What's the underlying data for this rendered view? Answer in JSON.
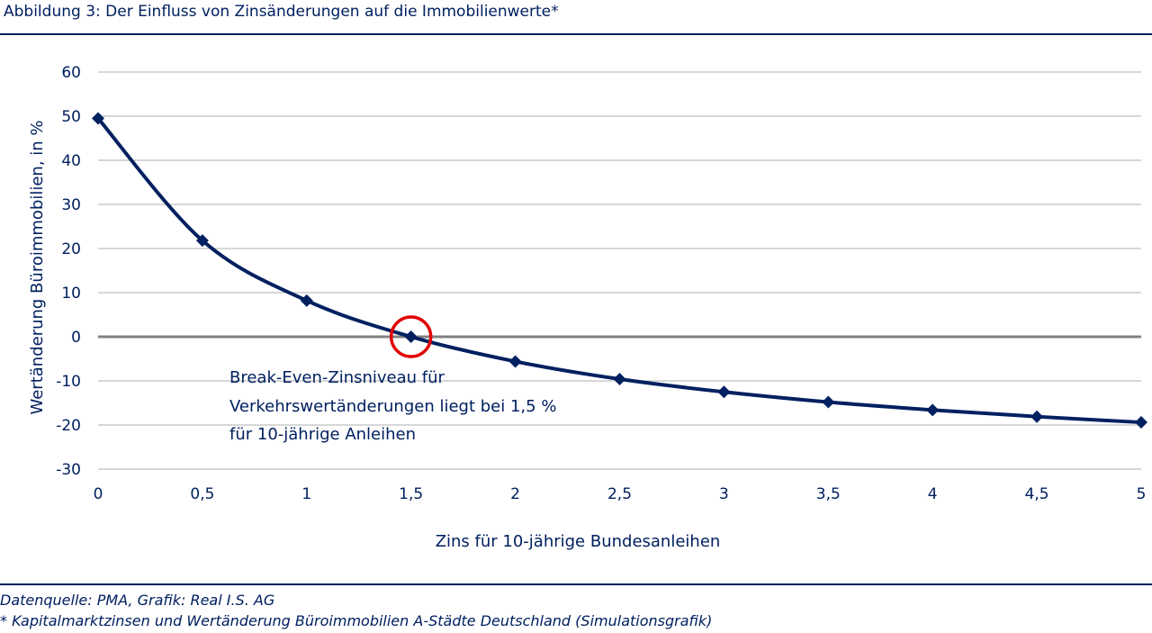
{
  "header": {
    "title": "Abbildung 3: Der Einfluss von Zinsänderungen auf die Immobilienwerte*"
  },
  "footer": {
    "source": "Datenquelle: PMA, Grafik: Real I.S. AG",
    "note": "* Kapitalmarktzinsen und Wertänderung Büroimmobilien A-Städte Deutschland (Simulationsgrafik)"
  },
  "colors": {
    "primary": "#002060",
    "grid": "#BFBFBF",
    "zero_line": "#808080",
    "highlight": "#E00000"
  },
  "chart_data": {
    "type": "line",
    "xlabel": "Zins für 10-jährige Bundesanleihen",
    "ylabel": "Wertänderung Büroimmobilien, in %",
    "xlim": [
      0,
      5
    ],
    "ylim": [
      -30,
      60
    ],
    "x_ticks": [
      0,
      0.5,
      1,
      1.5,
      2,
      2.5,
      3,
      3.5,
      4,
      4.5,
      5
    ],
    "x_tick_labels": [
      "0",
      "0,5",
      "1",
      "1,5",
      "2",
      "2,5",
      "3",
      "3,5",
      "4",
      "4,5",
      "5"
    ],
    "y_ticks": [
      60,
      50,
      40,
      30,
      20,
      10,
      0,
      -10,
      -20,
      -30
    ],
    "y_tick_labels": [
      "60",
      "50",
      "40",
      "30",
      "20",
      "10",
      "0",
      "-10",
      "-20",
      "-30"
    ],
    "grid": "horizontal",
    "smooth": true,
    "marker": "diamond",
    "series": [
      {
        "x": [
          0,
          0.5,
          1,
          1.5,
          2,
          2.5,
          3,
          3.5,
          4,
          4.5,
          5
        ],
        "values": [
          49.5,
          21.8,
          8.2,
          0,
          -5.6,
          -9.6,
          -12.5,
          -14.8,
          -16.6,
          -18.1,
          -19.4
        ]
      }
    ],
    "highlight": {
      "x": 1.5,
      "y": 0,
      "shape": "circle"
    },
    "annotation": {
      "lines": [
        "Break-Even-Zinsniveau für",
        "Verkehrswertänderungen liegt bei 1,5 %",
        "für 10-jährige Anleihen"
      ]
    }
  }
}
